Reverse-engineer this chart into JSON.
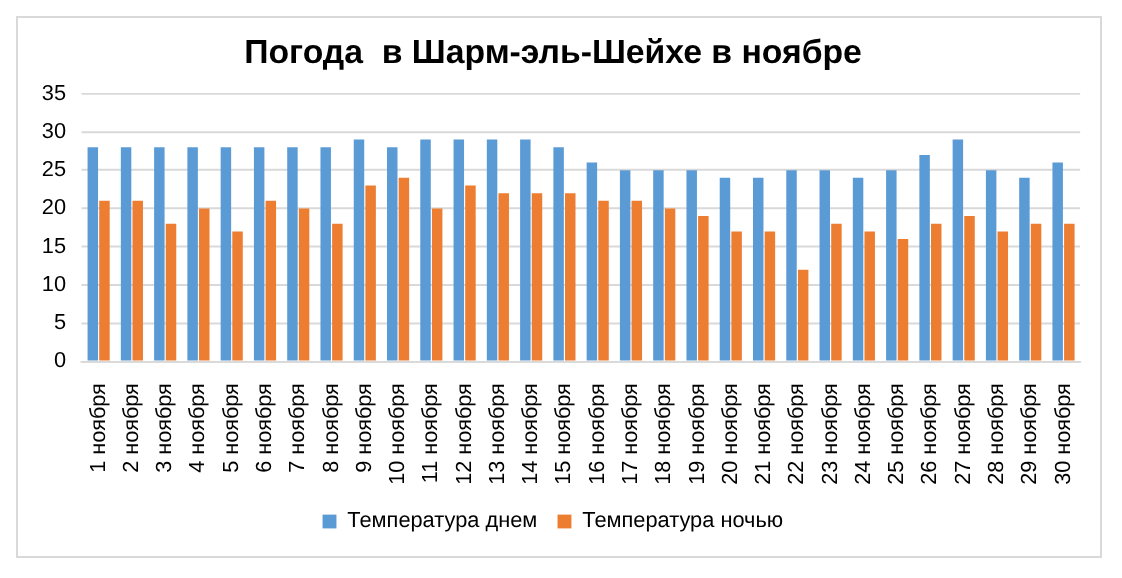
{
  "chart_data": {
    "type": "bar",
    "title": "Погода  в Шарм-эль-Шейхе в ноябре",
    "categories": [
      "1 ноября",
      "2 ноября",
      "3 ноября",
      "4 ноября",
      "5 ноября",
      "6 ноября",
      "7 ноября",
      "8 ноября",
      "9 ноября",
      "10 ноября",
      "11 ноября",
      "12 ноября",
      "13 ноября",
      "14 ноября",
      "15 ноября",
      "16 ноября",
      "17 ноября",
      "18 ноября",
      "19 ноября",
      "20 ноября",
      "21 ноября",
      "22 ноября",
      "23 ноября",
      "24 ноября",
      "25 ноября",
      "26 ноября",
      "27 ноября",
      "28 ноября",
      "29 ноября",
      "30 ноября"
    ],
    "series": [
      {
        "name": "Температура днем",
        "color": "#5b9bd5",
        "values": [
          28,
          28,
          28,
          28,
          28,
          28,
          28,
          28,
          29,
          28,
          29,
          29,
          29,
          29,
          28,
          26,
          25,
          25,
          25,
          24,
          24,
          25,
          25,
          24,
          25,
          27,
          29,
          25,
          24,
          26
        ]
      },
      {
        "name": "Температура ночью",
        "color": "#ed7d31",
        "values": [
          21,
          21,
          18,
          20,
          17,
          21,
          20,
          18,
          23,
          24,
          20,
          23,
          22,
          22,
          22,
          21,
          21,
          20,
          19,
          17,
          17,
          12,
          18,
          17,
          16,
          18,
          19,
          17,
          18,
          18
        ]
      }
    ],
    "ylim": [
      0,
      35
    ],
    "yticks": [
      0,
      5,
      10,
      15,
      20,
      25,
      30,
      35
    ],
    "grid": "y",
    "legend": "bottom"
  }
}
